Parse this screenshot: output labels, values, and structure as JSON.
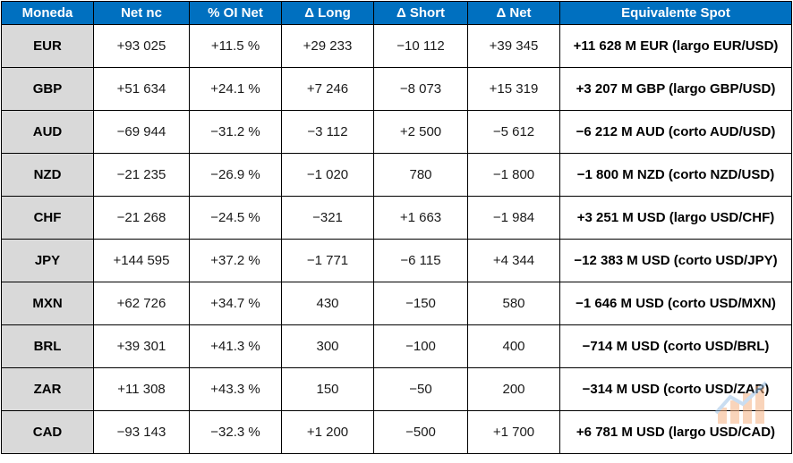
{
  "headers": [
    "Moneda",
    "Net nc",
    "% OI Net",
    "Δ Long",
    "Δ Short",
    "Δ Net",
    "Equivalente Spot"
  ],
  "rows": [
    {
      "currency": "EUR",
      "net_nc": "+93 025",
      "oi_net": "+11.5 %",
      "d_long": "+29 233",
      "d_short": "−10 112",
      "d_net": "+39 345",
      "spot": "+11 628 M EUR (largo EUR/USD)"
    },
    {
      "currency": "GBP",
      "net_nc": "+51 634",
      "oi_net": "+24.1 %",
      "d_long": "+7 246",
      "d_short": "−8 073",
      "d_net": "+15 319",
      "spot": "+3 207 M GBP (largo GBP/USD)"
    },
    {
      "currency": "AUD",
      "net_nc": "−69 944",
      "oi_net": "−31.2 %",
      "d_long": "−3 112",
      "d_short": "+2 500",
      "d_net": "−5 612",
      "spot": "−6 212 M AUD (corto AUD/USD)"
    },
    {
      "currency": "NZD",
      "net_nc": "−21 235",
      "oi_net": "−26.9 %",
      "d_long": "−1 020",
      "d_short": "780",
      "d_net": "−1 800",
      "spot": "−1 800 M NZD (corto NZD/USD)"
    },
    {
      "currency": "CHF",
      "net_nc": "−21 268",
      "oi_net": "−24.5 %",
      "d_long": "−321",
      "d_short": "+1 663",
      "d_net": "−1 984",
      "spot": "+3 251 M USD (largo USD/CHF)"
    },
    {
      "currency": "JPY",
      "net_nc": "+144 595",
      "oi_net": "+37.2 %",
      "d_long": "−1 771",
      "d_short": "−6 115",
      "d_net": "+4 344",
      "spot": "−12 383 M USD (corto USD/JPY)"
    },
    {
      "currency": "MXN",
      "net_nc": "+62 726",
      "oi_net": "+34.7 %",
      "d_long": "430",
      "d_short": "−150",
      "d_net": "580",
      "spot": "−1 646 M USD (corto USD/MXN)"
    },
    {
      "currency": "BRL",
      "net_nc": "+39 301",
      "oi_net": "+41.3 %",
      "d_long": "300",
      "d_short": "−100",
      "d_net": "400",
      "spot": "−714 M USD (corto USD/BRL)"
    },
    {
      "currency": "ZAR",
      "net_nc": "+11 308",
      "oi_net": "+43.3 %",
      "d_long": "150",
      "d_short": "−50",
      "d_net": "200",
      "spot": "−314 M USD (corto USD/ZAR)"
    },
    {
      "currency": "CAD",
      "net_nc": "−93 143",
      "oi_net": "−32.3 %",
      "d_long": "+1 200",
      "d_short": "−500",
      "d_net": "+1 700",
      "spot": "+6 781 M USD (largo USD/CAD)"
    }
  ],
  "colors": {
    "header_bg": "#0070c0",
    "currency_bg": "#d9d9d9"
  },
  "watermark_icon": "chart-logo-icon"
}
